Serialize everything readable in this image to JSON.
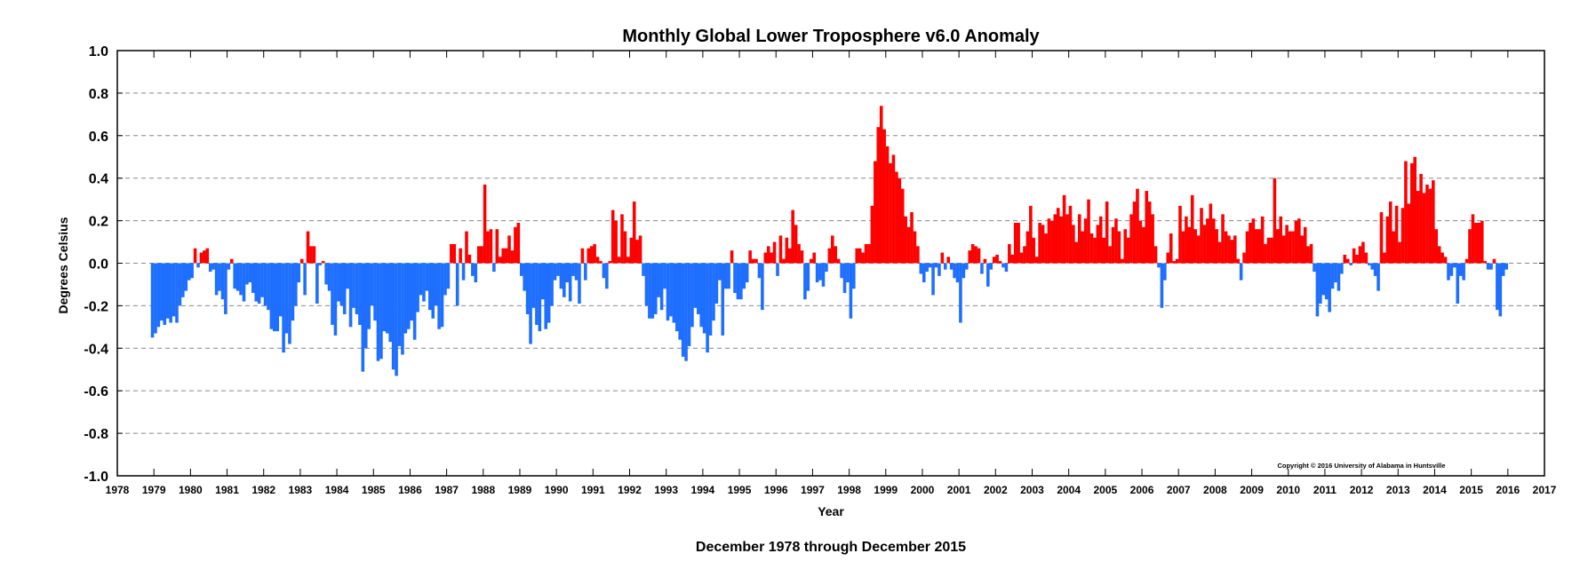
{
  "chart_data": {
    "type": "bar",
    "title": "Monthly Global Lower Troposphere v6.0 Anomaly",
    "xlabel": "Year",
    "ylabel": "Degrees Celsius",
    "subtitle": "December 1978 through December 2015",
    "copyright": "Copyright © 2016 University of Alabama in Huntsville",
    "xlim": [
      1978,
      2017
    ],
    "ylim": [
      -1.0,
      1.0
    ],
    "x_ticks": [
      1978,
      1979,
      1980,
      1981,
      1982,
      1983,
      1984,
      1985,
      1986,
      1987,
      1988,
      1989,
      1990,
      1991,
      1992,
      1993,
      1994,
      1995,
      1996,
      1997,
      1998,
      1999,
      2000,
      2001,
      2002,
      2003,
      2004,
      2005,
      2006,
      2007,
      2008,
      2009,
      2010,
      2011,
      2012,
      2013,
      2014,
      2015,
      2016,
      2017
    ],
    "y_ticks": [
      "1.0",
      "0.8",
      "0.6",
      "0.4",
      "0.2",
      "0.0",
      "-0.2",
      "-0.4",
      "-0.6",
      "-0.8",
      "-1.0"
    ],
    "y_tick_values": [
      1.0,
      0.8,
      0.6,
      0.4,
      0.2,
      0.0,
      -0.2,
      -0.4,
      -0.6,
      -0.8,
      -1.0
    ],
    "grid": "horizontal dashed",
    "colors": {
      "positive": "#ff0000",
      "negative": "#1f6fff",
      "grid": "#888888"
    },
    "start": "1978-12",
    "end": "2015-12",
    "yearly_values": {
      "1978": [
        -0.35
      ],
      "1979": [
        -0.33,
        -0.3,
        -0.27,
        -0.29,
        -0.26,
        -0.28,
        -0.25,
        -0.28,
        -0.2,
        -0.16,
        -0.13,
        -0.08
      ],
      "1980": [
        -0.07,
        0.07,
        -0.02,
        0.05,
        0.06,
        0.07,
        -0.04,
        -0.03,
        -0.15,
        -0.13,
        -0.17,
        -0.24
      ],
      "1981": [
        -0.03,
        0.02,
        -0.12,
        -0.13,
        -0.15,
        -0.18,
        -0.1,
        -0.09,
        -0.14,
        -0.18,
        -0.19,
        -0.16
      ],
      "1982": [
        -0.2,
        -0.22,
        -0.31,
        -0.32,
        -0.32,
        -0.25,
        -0.42,
        -0.33,
        -0.38,
        -0.27,
        -0.2,
        -0.09
      ],
      "1983": [
        0.02,
        -0.15,
        0.15,
        0.08,
        0.08,
        -0.19,
        -0.01,
        0.01,
        -0.1,
        -0.13,
        -0.29,
        -0.34
      ],
      "1984": [
        -0.18,
        -0.2,
        -0.24,
        -0.12,
        -0.3,
        -0.21,
        -0.24,
        -0.29,
        -0.51,
        -0.4,
        -0.31,
        -0.2
      ],
      "1985": [
        -0.27,
        -0.46,
        -0.45,
        -0.32,
        -0.33,
        -0.37,
        -0.5,
        -0.53,
        -0.39,
        -0.43,
        -0.33,
        -0.31
      ],
      "1986": [
        -0.27,
        -0.36,
        -0.23,
        -0.15,
        -0.18,
        -0.13,
        -0.22,
        -0.26,
        -0.2,
        -0.31,
        -0.3,
        -0.15
      ],
      "1987": [
        -0.12,
        0.09,
        0.09,
        -0.2,
        0.07,
        -0.08,
        0.15,
        0.04,
        -0.06,
        -0.09,
        0.08,
        0.08
      ],
      "1988": [
        0.37,
        0.15,
        0.16,
        -0.04,
        0.16,
        0.03,
        0.07,
        0.07,
        0.13,
        0.06,
        0.17,
        0.19
      ],
      "1989": [
        -0.06,
        -0.13,
        -0.24,
        -0.38,
        -0.21,
        -0.29,
        -0.32,
        -0.17,
        -0.31,
        -0.28,
        -0.2,
        -0.08
      ],
      "1990": [
        -0.06,
        -0.12,
        -0.16,
        -0.09,
        -0.18,
        -0.06,
        -0.08,
        -0.19,
        0.07,
        -0.08,
        0.07,
        0.08
      ],
      "1991": [
        0.09,
        0.03,
        0.01,
        -0.07,
        -0.12,
        0.01,
        0.25,
        0.2,
        0.03,
        0.23,
        0.15,
        0.03
      ],
      "1992": [
        0.12,
        0.29,
        0.11,
        0.13,
        -0.06,
        -0.2,
        -0.26,
        -0.26,
        -0.24,
        -0.16,
        -0.22,
        -0.12
      ],
      "1993": [
        -0.27,
        -0.25,
        -0.28,
        -0.32,
        -0.36,
        -0.44,
        -0.46,
        -0.39,
        -0.3,
        -0.21,
        -0.24,
        -0.3
      ],
      "1994": [
        -0.33,
        -0.42,
        -0.34,
        -0.27,
        -0.19,
        -0.08,
        -0.34,
        -0.12,
        -0.12,
        0.06,
        -0.14,
        -0.17
      ],
      "1995": [
        -0.17,
        -0.12,
        -0.09,
        0.06,
        0.02,
        0.02,
        -0.07,
        -0.22,
        0.05,
        0.08,
        0.05,
        0.1
      ],
      "1996": [
        -0.06,
        0.13,
        0.02,
        0.12,
        0.07,
        0.25,
        0.18,
        0.09,
        0.06,
        -0.17,
        -0.13,
        0.02
      ],
      "1997": [
        0.05,
        -0.09,
        -0.08,
        -0.11,
        -0.04,
        0.07,
        0.13,
        0.08,
        0.02,
        -0.07,
        -0.14,
        -0.09
      ],
      "1998": [
        -0.26,
        -0.12,
        0.07,
        0.07,
        0.05,
        0.09,
        0.09,
        0.27,
        0.48,
        0.64,
        0.74,
        0.63
      ],
      "1999": [
        0.55,
        0.47,
        0.51,
        0.43,
        0.4,
        0.35,
        0.22,
        0.17,
        0.24,
        0.15,
        0.08,
        -0.05
      ],
      "2000": [
        -0.09,
        -0.04,
        -0.02,
        -0.15,
        -0.02,
        -0.06,
        0.05,
        -0.03,
        0.03,
        -0.03,
        -0.07,
        -0.09
      ],
      "2001": [
        -0.28,
        -0.07,
        -0.03,
        0.06,
        0.09,
        0.08,
        0.07,
        -0.05,
        0.02,
        -0.11,
        -0.03,
        0.03
      ],
      "2002": [
        0.04,
        0.01,
        -0.02,
        -0.04,
        0.09,
        0.04,
        0.19,
        0.19,
        0.05,
        0.08,
        0.15,
        0.27
      ],
      "2003": [
        0.12,
        0.03,
        0.19,
        0.18,
        0.14,
        0.21,
        0.2,
        0.23,
        0.26,
        0.22,
        0.32,
        0.23
      ],
      "2004": [
        0.27,
        0.18,
        0.1,
        0.23,
        0.15,
        0.21,
        0.3,
        0.14,
        0.12,
        0.18,
        0.22,
        0.12
      ],
      "2005": [
        0.29,
        0.08,
        0.17,
        0.21,
        0.15,
        0.02,
        0.16,
        0.12,
        0.23,
        0.29,
        0.35,
        0.2
      ],
      "2006": [
        0.17,
        0.34,
        0.29,
        0.23,
        0.08,
        -0.02,
        -0.21,
        -0.08,
        0.05,
        0.14,
        0.01,
        0.02
      ],
      "2007": [
        0.27,
        0.15,
        0.22,
        0.17,
        0.32,
        0.16,
        0.13,
        0.26,
        0.18,
        0.21,
        0.28,
        0.21
      ],
      "2008": [
        0.16,
        0.1,
        0.23,
        0.15,
        0.13,
        0.11,
        0.13,
        0.02,
        -0.08,
        0.05,
        0.15,
        0.19
      ],
      "2009": [
        0.21,
        0.16,
        0.16,
        0.22,
        0.09,
        0.12,
        0.12,
        0.4,
        0.16,
        0.22,
        0.13,
        0.18
      ],
      "2010": [
        0.15,
        0.15,
        0.2,
        0.21,
        0.13,
        0.17,
        0.08,
        0.09,
        -0.04,
        -0.25,
        -0.19,
        -0.15
      ],
      "2011": [
        -0.17,
        -0.23,
        -0.12,
        -0.09,
        -0.13,
        -0.05,
        0.04,
        0.02,
        -0.01,
        0.07,
        0.04,
        0.08
      ],
      "2012": [
        0.1,
        0.05,
        -0.01,
        -0.03,
        -0.06,
        -0.13,
        0.24,
        0.05,
        0.22,
        0.29,
        0.15,
        0.27
      ],
      "2013": [
        0.1,
        0.26,
        0.48,
        0.28,
        0.47,
        0.5,
        0.34,
        0.42,
        0.33,
        0.37,
        0.35,
        0.39
      ],
      "2014": [
        0.16,
        0.08,
        0.05,
        0.03,
        -0.08,
        -0.06,
        -0.02,
        -0.19,
        -0.06,
        -0.08,
        0.02,
        0.16
      ],
      "2015": [
        0.23,
        0.19,
        0.19,
        0.2,
        0.01,
        -0.03,
        -0.03,
        0.02,
        -0.22,
        -0.25,
        -0.06,
        -0.03
      ]
    }
  }
}
